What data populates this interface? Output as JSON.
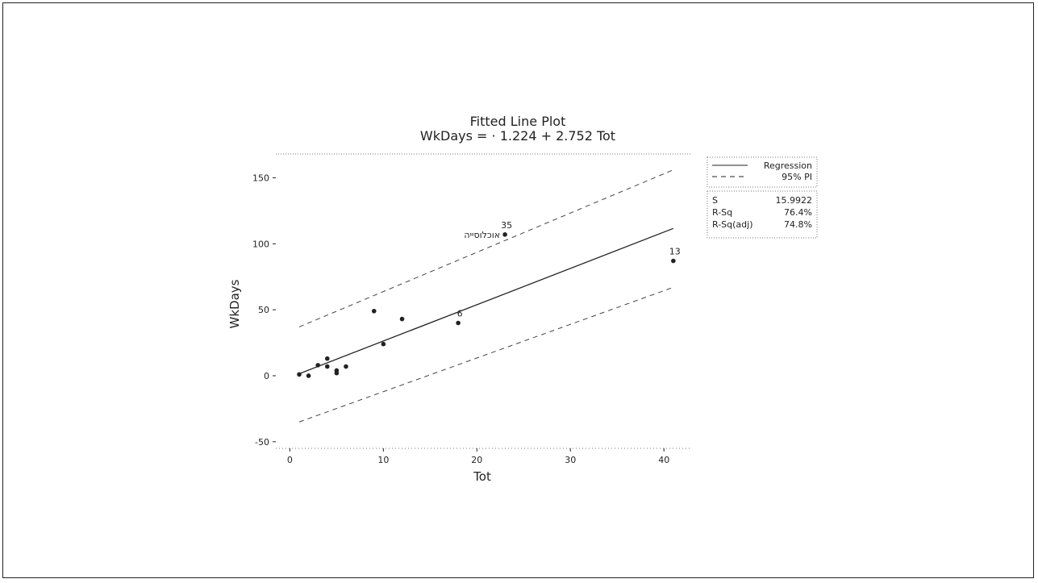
{
  "chart_data": {
    "type": "scatter",
    "title": "Fitted Line Plot",
    "subtitle": "WkDays = · 1.224 + 2.752 Tot",
    "xlabel": "Tot",
    "ylabel": "WkDays",
    "xlim": [
      -1.5,
      43
    ],
    "ylim": [
      -55,
      168
    ],
    "xticks": [
      0,
      10,
      20,
      30,
      40
    ],
    "xtick_labels": [
      "0",
      "10",
      "20",
      "30",
      "40"
    ],
    "yticks": [
      150,
      100,
      50,
      0,
      -50
    ],
    "ytick_labels": [
      "150",
      "100",
      "50",
      "0",
      "-50"
    ],
    "points": [
      {
        "x": 1,
        "y": 1
      },
      {
        "x": 2,
        "y": 0
      },
      {
        "x": 3,
        "y": 8
      },
      {
        "x": 4,
        "y": 13
      },
      {
        "x": 4,
        "y": 7
      },
      {
        "x": 5,
        "y": 4
      },
      {
        "x": 5,
        "y": 2
      },
      {
        "x": 6,
        "y": 7
      },
      {
        "x": 9,
        "y": 49
      },
      {
        "x": 10,
        "y": 24
      },
      {
        "x": 12,
        "y": 43
      },
      {
        "x": 18,
        "y": 40,
        "label": "6"
      },
      {
        "x": 23,
        "y": 107,
        "label": "35",
        "name": "אוכלוסייה"
      },
      {
        "x": 41,
        "y": 87,
        "label": "13"
      }
    ],
    "regression": {
      "intercept": -1.224,
      "slope": 2.752,
      "x_range": [
        1,
        41
      ]
    },
    "pi_upper": [
      {
        "x": 1,
        "y": 37
      },
      {
        "x": 41,
        "y": 156
      }
    ],
    "pi_lower": [
      {
        "x": 1,
        "y": -35
      },
      {
        "x": 41,
        "y": 67
      }
    ],
    "legend": {
      "placement": "right",
      "entries": [
        {
          "label": "Regression",
          "style": "solid"
        },
        {
          "label": "95% PI",
          "style": "dashed"
        }
      ]
    },
    "stats": [
      {
        "label": "S",
        "value": "15.9922"
      },
      {
        "label": "R-Sq",
        "value": "76.4%"
      },
      {
        "label": "R-Sq(adj)",
        "value": "74.8%"
      }
    ],
    "grid": false
  },
  "colors": {
    "ink": "#222222",
    "dash": "#444444",
    "background": "#ffffff"
  }
}
